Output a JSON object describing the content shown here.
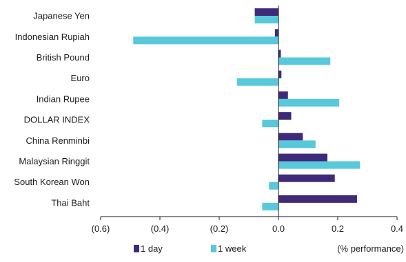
{
  "chart_data": {
    "type": "bar",
    "orientation": "horizontal",
    "categories": [
      "Japanese Yen",
      "Indonesian Rupiah",
      "British Pound",
      "Euro",
      "Indian Rupee",
      "DOLLAR INDEX",
      "China Renminbi",
      "Malaysian Ringgit",
      "South Korean Won",
      "Thai Baht"
    ],
    "series": [
      {
        "name": "1 day",
        "color": "#3f2a7a",
        "values": [
          -0.08,
          -0.012,
          0.008,
          0.01,
          0.032,
          0.043,
          0.082,
          0.165,
          0.19,
          0.265
        ]
      },
      {
        "name": "1 week",
        "color": "#58c8db",
        "values": [
          -0.08,
          -0.49,
          0.175,
          -0.14,
          0.205,
          -0.055,
          0.125,
          0.275,
          -0.032,
          -0.055
        ]
      }
    ],
    "xlim": [
      -0.6,
      0.4
    ],
    "xticks": [
      -0.6,
      -0.4,
      -0.2,
      0.0,
      0.2,
      0.4
    ],
    "xtick_labels": [
      "(0.6)",
      "(0.4)",
      "(0.2)",
      "0.0",
      "0.2",
      "0.4"
    ],
    "unit_label": "(% performance)",
    "legend_position": "bottom",
    "grid": false
  }
}
